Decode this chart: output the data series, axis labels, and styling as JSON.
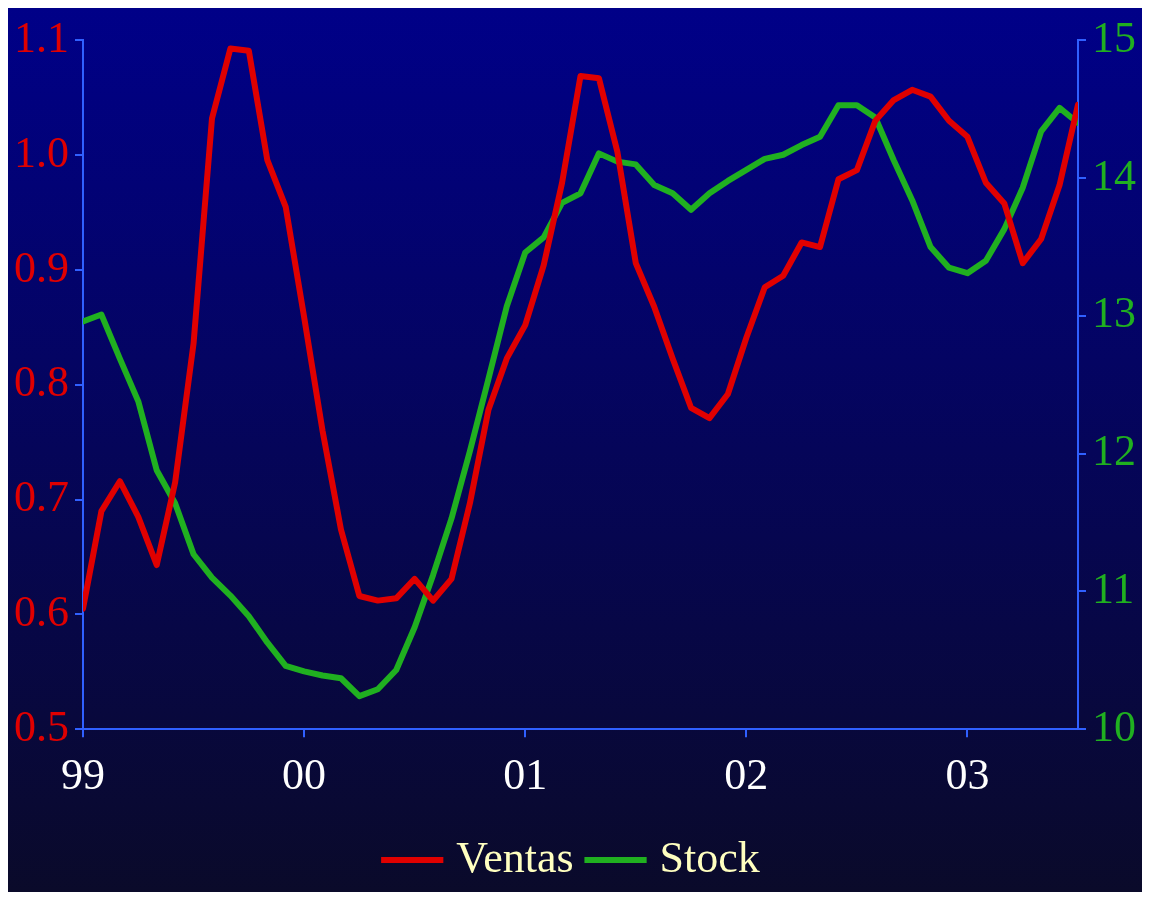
{
  "chart_data": {
    "type": "line",
    "x": [
      "1999-01",
      "1999-02",
      "1999-03",
      "1999-04",
      "1999-05",
      "1999-06",
      "1999-07",
      "1999-08",
      "1999-09",
      "1999-10",
      "1999-11",
      "1999-12",
      "2000-01",
      "2000-02",
      "2000-03",
      "2000-04",
      "2000-05",
      "2000-06",
      "2000-07",
      "2000-08",
      "2000-09",
      "2000-10",
      "2000-11",
      "2000-12",
      "2001-01",
      "2001-02",
      "2001-03",
      "2001-04",
      "2001-05",
      "2001-06",
      "2001-07",
      "2001-08",
      "2001-09",
      "2001-10",
      "2001-11",
      "2001-12",
      "2002-01",
      "2002-02",
      "2002-03",
      "2002-04",
      "2002-05",
      "2002-06",
      "2002-07",
      "2002-08",
      "2002-09",
      "2002-10",
      "2002-11",
      "2002-12",
      "2003-01",
      "2003-02",
      "2003-03",
      "2003-04",
      "2003-05",
      "2003-06",
      "2003-07"
    ],
    "series": [
      {
        "name": "Ventas",
        "color": "#e00000",
        "values": [
          0.605,
          0.69,
          0.716,
          0.685,
          0.643,
          0.715,
          0.836,
          1.032,
          1.093,
          1.091,
          0.996,
          0.955,
          0.859,
          0.76,
          0.674,
          0.616,
          0.612,
          0.614,
          0.631,
          0.612,
          0.631,
          0.697,
          0.778,
          0.823,
          0.852,
          0.904,
          0.976,
          1.069,
          1.067,
          1.003,
          0.906,
          0.868,
          0.823,
          0.78,
          0.771,
          0.792,
          0.841,
          0.885,
          0.895,
          0.924,
          0.92,
          0.979,
          0.987,
          1.03,
          1.048,
          1.057,
          1.051,
          1.03,
          1.016,
          0.976,
          0.958,
          0.906,
          0.927,
          0.974,
          1.044
        ]
      },
      {
        "name": "Stock",
        "color": "#20b020",
        "axis": "y2",
        "values": [
          12.96,
          13.01,
          12.69,
          12.38,
          11.88,
          11.64,
          11.27,
          11.1,
          10.97,
          10.82,
          10.63,
          10.46,
          10.42,
          10.39,
          10.37,
          10.24,
          10.29,
          10.43,
          10.74,
          11.12,
          11.53,
          12.02,
          12.54,
          13.07,
          13.46,
          13.57,
          13.82,
          13.89,
          14.18,
          14.12,
          14.1,
          13.95,
          13.89,
          13.77,
          13.89,
          13.98,
          14.06,
          14.14,
          14.17,
          14.24,
          14.3,
          14.53,
          14.53,
          14.44,
          14.13,
          13.84,
          13.5,
          13.35,
          13.31,
          13.4,
          13.63,
          13.93,
          14.34,
          14.51,
          14.4
        ]
      }
    ],
    "xlim": [
      "1999-01",
      "2003-07"
    ],
    "xticks": [
      {
        "value": "1999-01",
        "label": "99"
      },
      {
        "value": "2000-01",
        "label": "00"
      },
      {
        "value": "2001-01",
        "label": "01"
      },
      {
        "value": "2002-01",
        "label": "02"
      },
      {
        "value": "2003-01",
        "label": "03"
      }
    ],
    "ylim": [
      0.5,
      1.1
    ],
    "yticks": [
      {
        "value": 0.5,
        "label": "0.5"
      },
      {
        "value": 0.6,
        "label": "0.6"
      },
      {
        "value": 0.7,
        "label": "0.7"
      },
      {
        "value": 0.8,
        "label": "0.8"
      },
      {
        "value": 0.9,
        "label": "0.9"
      },
      {
        "value": 1.0,
        "label": "1.0"
      },
      {
        "value": 1.1,
        "label": "1.1"
      }
    ],
    "y2lim": [
      10,
      15
    ],
    "y2ticks": [
      10,
      11,
      12,
      13,
      14,
      15
    ],
    "legend": "bottom",
    "grid": false,
    "marker": "none",
    "line_style": "solid"
  }
}
